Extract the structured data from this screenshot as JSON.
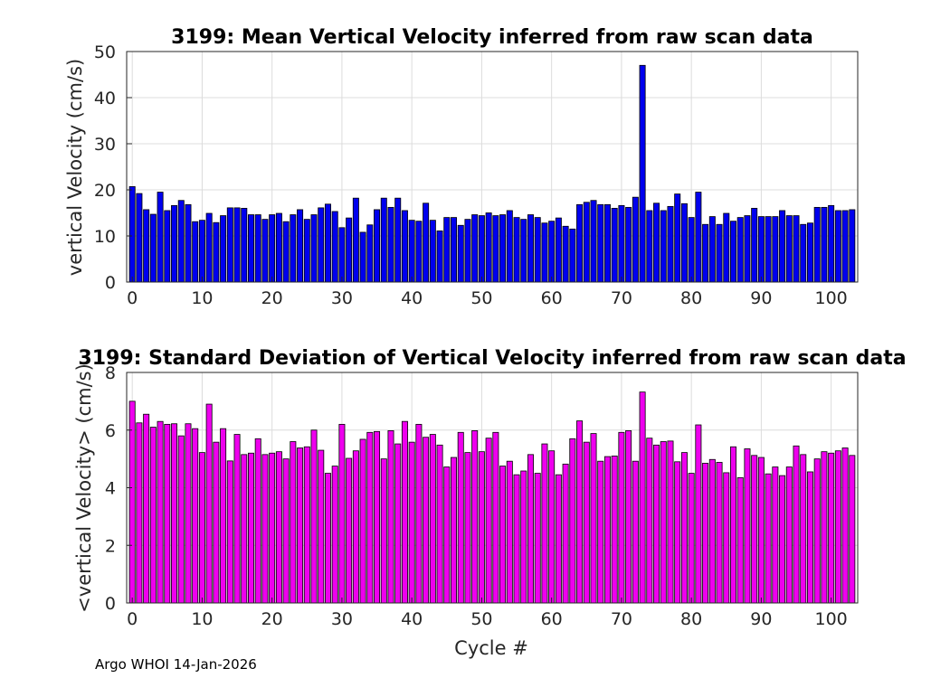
{
  "footer": "Argo WHOI 14-Jan-2026",
  "colors": {
    "mean_bar": "#0000ee",
    "std_bar": "#ee00ee",
    "grid": "#dcdcdc",
    "axis": "#262626"
  },
  "chart_data": [
    {
      "type": "bar",
      "title": "3199: Mean Vertical Velocity inferred from raw scan data",
      "xlabel": "",
      "ylabel": "vertical Velocity (cm/s)",
      "xlim": [
        -0.8,
        103.8
      ],
      "ylim": [
        0,
        50
      ],
      "xticks": [
        0,
        10,
        20,
        30,
        40,
        50,
        60,
        70,
        80,
        90,
        100
      ],
      "yticks": [
        0,
        10,
        20,
        30,
        40,
        50
      ],
      "grid": true,
      "x_start": 0,
      "values": [
        20.7,
        19.2,
        15.7,
        14.7,
        19.5,
        15.5,
        16.6,
        17.7,
        16.8,
        13.1,
        13.4,
        14.9,
        12.9,
        14.4,
        16.1,
        16.1,
        16.0,
        14.6,
        14.6,
        13.6,
        14.6,
        14.9,
        13.1,
        14.6,
        15.7,
        13.6,
        14.6,
        16.1,
        16.9,
        15.3,
        11.8,
        13.9,
        18.2,
        10.8,
        12.4,
        15.7,
        18.2,
        16.2,
        18.2,
        15.5,
        13.4,
        13.2,
        17.1,
        13.4,
        11.1,
        14.0,
        14.0,
        12.3,
        13.6,
        14.6,
        14.4,
        15.0,
        14.4,
        14.6,
        15.5,
        14.0,
        13.6,
        14.6,
        14.0,
        12.8,
        13.2,
        13.9,
        12.1,
        11.5,
        16.8,
        17.3,
        17.7,
        16.8,
        16.8,
        16.0,
        16.6,
        16.2,
        18.4,
        47.0,
        15.5,
        17.1,
        15.5,
        16.4,
        19.1,
        17.0,
        14.0,
        19.5,
        12.5,
        14.2,
        12.5,
        14.9,
        13.2,
        14.0,
        14.4,
        16.0,
        14.2,
        14.2,
        14.2,
        15.5,
        14.4,
        14.4,
        12.5,
        12.8,
        16.2,
        16.2,
        16.6,
        15.5,
        15.5,
        15.7
      ]
    },
    {
      "type": "bar",
      "title": "3199: Standard Deviation of Vertical Velocity inferred from raw scan data",
      "xlabel": "Cycle #",
      "ylabel": "<vertical Velocity> (cm/s)",
      "xlim": [
        -0.8,
        103.8
      ],
      "ylim": [
        0,
        8
      ],
      "xticks": [
        0,
        10,
        20,
        30,
        40,
        50,
        60,
        70,
        80,
        90,
        100
      ],
      "yticks": [
        0,
        2,
        4,
        6,
        8
      ],
      "grid": true,
      "x_start": 0,
      "values": [
        7.0,
        6.25,
        6.55,
        6.1,
        6.3,
        6.2,
        6.22,
        5.8,
        6.22,
        6.05,
        5.22,
        6.9,
        5.58,
        6.05,
        4.93,
        5.85,
        5.15,
        5.2,
        5.7,
        5.15,
        5.2,
        5.25,
        5.0,
        5.6,
        5.38,
        5.42,
        6.0,
        5.3,
        4.5,
        4.75,
        6.2,
        5.02,
        5.28,
        5.68,
        5.92,
        5.95,
        5.0,
        5.98,
        5.52,
        6.3,
        5.58,
        6.2,
        5.75,
        5.85,
        5.48,
        4.72,
        5.05,
        5.92,
        5.22,
        5.98,
        5.25,
        5.72,
        5.92,
        4.75,
        4.92,
        4.45,
        4.58,
        5.15,
        4.5,
        5.52,
        5.28,
        4.45,
        4.82,
        5.7,
        6.32,
        5.58,
        5.88,
        4.92,
        5.08,
        5.1,
        5.92,
        5.98,
        4.92,
        7.32,
        5.72,
        5.48,
        5.6,
        5.62,
        4.9,
        5.22,
        4.5,
        6.18,
        4.85,
        4.98,
        4.88,
        4.52,
        5.42,
        4.35,
        5.35,
        5.12,
        5.05,
        4.48,
        4.72,
        4.42,
        4.72,
        5.45,
        5.15,
        4.55,
        5.0,
        5.25,
        5.2,
        5.28,
        5.38,
        5.12
      ]
    }
  ]
}
